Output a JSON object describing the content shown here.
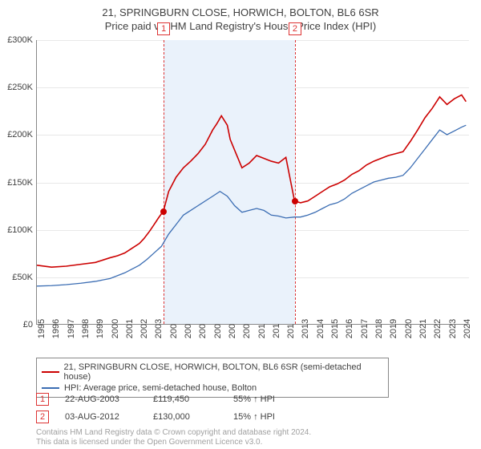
{
  "title_main": "21, SPRINGBURN CLOSE, HORWICH, BOLTON, BL6 6SR",
  "title_sub": "Price paid vs. HM Land Registry's House Price Index (HPI)",
  "chart": {
    "type": "line",
    "background_color": "#ffffff",
    "grid_color": "#e8e8e8",
    "axis_color": "#888888",
    "tick_fontsize": 11,
    "ylim": [
      0,
      300000
    ],
    "ytick_step": 50000,
    "ytick_labels": [
      "£0",
      "£50K",
      "£100K",
      "£150K",
      "£200K",
      "£250K",
      "£300K"
    ],
    "xlim": [
      1995,
      2024.5
    ],
    "xtick_years": [
      1995,
      1996,
      1997,
      1998,
      1999,
      2000,
      2001,
      2002,
      2003,
      2004,
      2005,
      2006,
      2007,
      2008,
      2009,
      2010,
      2011,
      2012,
      2013,
      2014,
      2015,
      2016,
      2017,
      2018,
      2019,
      2020,
      2021,
      2022,
      2023,
      2024
    ],
    "band": {
      "start": 2003.64,
      "end": 2012.59,
      "color": "#eaf2fb"
    },
    "markers": [
      {
        "label": "1",
        "x": 2003.64,
        "y": 119450
      },
      {
        "label": "2",
        "x": 2012.59,
        "y": 130000
      }
    ],
    "marker_line_color": "#d33",
    "marker_dot_color": "#cc0000",
    "series": [
      {
        "name": "price_paid",
        "color": "#cc0000",
        "width": 1.6,
        "points": [
          [
            1995.0,
            62000
          ],
          [
            1996.0,
            60000
          ],
          [
            1997.0,
            61000
          ],
          [
            1998.0,
            63000
          ],
          [
            1999.0,
            65000
          ],
          [
            2000.0,
            70000
          ],
          [
            2000.5,
            72000
          ],
          [
            2001.0,
            75000
          ],
          [
            2001.5,
            80000
          ],
          [
            2002.0,
            85000
          ],
          [
            2002.3,
            90000
          ],
          [
            2002.7,
            98000
          ],
          [
            2003.0,
            105000
          ],
          [
            2003.3,
            112000
          ],
          [
            2003.64,
            119450
          ],
          [
            2004.0,
            140000
          ],
          [
            2004.5,
            155000
          ],
          [
            2005.0,
            165000
          ],
          [
            2005.5,
            172000
          ],
          [
            2006.0,
            180000
          ],
          [
            2006.5,
            190000
          ],
          [
            2007.0,
            205000
          ],
          [
            2007.3,
            212000
          ],
          [
            2007.6,
            220000
          ],
          [
            2008.0,
            210000
          ],
          [
            2008.2,
            195000
          ],
          [
            2008.6,
            180000
          ],
          [
            2009.0,
            165000
          ],
          [
            2009.5,
            170000
          ],
          [
            2010.0,
            178000
          ],
          [
            2010.5,
            175000
          ],
          [
            2011.0,
            172000
          ],
          [
            2011.5,
            170000
          ],
          [
            2012.0,
            176000
          ],
          [
            2012.59,
            130000
          ],
          [
            2013.0,
            128000
          ],
          [
            2013.5,
            130000
          ],
          [
            2014.0,
            135000
          ],
          [
            2014.5,
            140000
          ],
          [
            2015.0,
            145000
          ],
          [
            2015.5,
            148000
          ],
          [
            2016.0,
            152000
          ],
          [
            2016.5,
            158000
          ],
          [
            2017.0,
            162000
          ],
          [
            2017.5,
            168000
          ],
          [
            2018.0,
            172000
          ],
          [
            2018.5,
            175000
          ],
          [
            2019.0,
            178000
          ],
          [
            2019.5,
            180000
          ],
          [
            2020.0,
            182000
          ],
          [
            2020.5,
            193000
          ],
          [
            2021.0,
            205000
          ],
          [
            2021.5,
            218000
          ],
          [
            2022.0,
            228000
          ],
          [
            2022.5,
            240000
          ],
          [
            2023.0,
            232000
          ],
          [
            2023.5,
            238000
          ],
          [
            2024.0,
            242000
          ],
          [
            2024.3,
            235000
          ]
        ]
      },
      {
        "name": "hpi",
        "color": "#3b6db3",
        "width": 1.3,
        "points": [
          [
            1995.0,
            40000
          ],
          [
            1996.0,
            40500
          ],
          [
            1997.0,
            41500
          ],
          [
            1998.0,
            43000
          ],
          [
            1999.0,
            45000
          ],
          [
            2000.0,
            48000
          ],
          [
            2001.0,
            54000
          ],
          [
            2002.0,
            62000
          ],
          [
            2002.5,
            68000
          ],
          [
            2003.0,
            75000
          ],
          [
            2003.5,
            82000
          ],
          [
            2004.0,
            95000
          ],
          [
            2004.5,
            105000
          ],
          [
            2005.0,
            115000
          ],
          [
            2005.5,
            120000
          ],
          [
            2006.0,
            125000
          ],
          [
            2006.5,
            130000
          ],
          [
            2007.0,
            135000
          ],
          [
            2007.5,
            140000
          ],
          [
            2008.0,
            135000
          ],
          [
            2008.5,
            125000
          ],
          [
            2009.0,
            118000
          ],
          [
            2009.5,
            120000
          ],
          [
            2010.0,
            122000
          ],
          [
            2010.5,
            120000
          ],
          [
            2011.0,
            115000
          ],
          [
            2011.5,
            114000
          ],
          [
            2012.0,
            112000
          ],
          [
            2012.59,
            113000
          ],
          [
            2013.0,
            113000
          ],
          [
            2013.5,
            115000
          ],
          [
            2014.0,
            118000
          ],
          [
            2014.5,
            122000
          ],
          [
            2015.0,
            126000
          ],
          [
            2015.5,
            128000
          ],
          [
            2016.0,
            132000
          ],
          [
            2016.5,
            138000
          ],
          [
            2017.0,
            142000
          ],
          [
            2017.5,
            146000
          ],
          [
            2018.0,
            150000
          ],
          [
            2018.5,
            152000
          ],
          [
            2019.0,
            154000
          ],
          [
            2019.5,
            155000
          ],
          [
            2020.0,
            157000
          ],
          [
            2020.5,
            165000
          ],
          [
            2021.0,
            175000
          ],
          [
            2021.5,
            185000
          ],
          [
            2022.0,
            195000
          ],
          [
            2022.5,
            205000
          ],
          [
            2023.0,
            200000
          ],
          [
            2023.5,
            204000
          ],
          [
            2024.0,
            208000
          ],
          [
            2024.3,
            210000
          ]
        ]
      }
    ]
  },
  "legend": {
    "items": [
      {
        "color": "#cc0000",
        "label": "21, SPRINGBURN CLOSE, HORWICH, BOLTON, BL6 6SR (semi-detached house)"
      },
      {
        "color": "#3b6db3",
        "label": "HPI: Average price, semi-detached house, Bolton"
      }
    ]
  },
  "events": [
    {
      "num": "1",
      "date": "22-AUG-2003",
      "price": "£119,450",
      "pct": "55% ↑ HPI"
    },
    {
      "num": "2",
      "date": "03-AUG-2012",
      "price": "£130,000",
      "pct": "15% ↑ HPI"
    }
  ],
  "footer_line1": "Contains HM Land Registry data © Crown copyright and database right 2024.",
  "footer_line2": "This data is licensed under the Open Government Licence v3.0."
}
